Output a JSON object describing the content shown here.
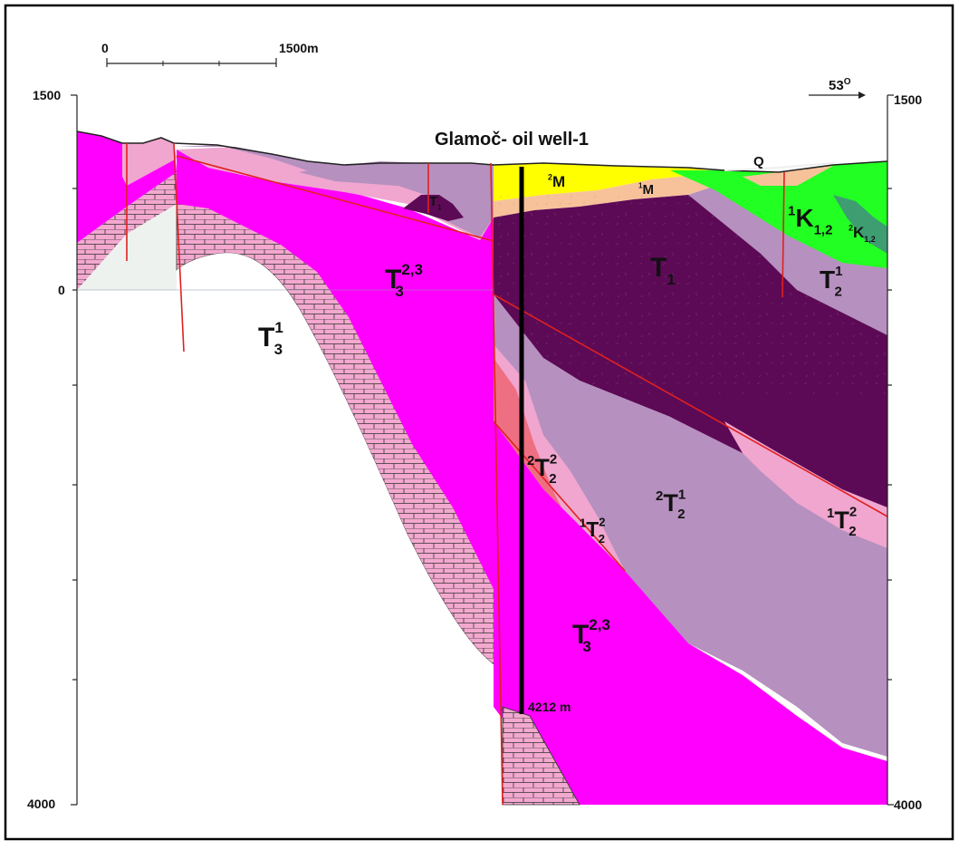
{
  "title": "Glamoč- oil well-1",
  "scale_bar": {
    "start_label": "0",
    "end_label": "1500m"
  },
  "orientation": {
    "label": "53",
    "degree_sign": "O"
  },
  "depth_axis": {
    "left_top": "1500",
    "left_zero": "0",
    "left_bottom": "4000",
    "right_top": "1500",
    "right_bottom": "4000"
  },
  "well": {
    "depth_label": "4212 m"
  },
  "units": {
    "t3_23_upper": {
      "pre": "",
      "base": "T",
      "sub": "3",
      "sup": "2,3"
    },
    "t3_1": {
      "pre": "",
      "base": "T",
      "sub": "3",
      "sup": "1"
    },
    "t1_small": {
      "pre": "",
      "base": "T",
      "sub": "1",
      "sup": ""
    },
    "m2": {
      "pre": "2",
      "base": "M",
      "sub": "",
      "sup": ""
    },
    "m1": {
      "pre": "1",
      "base": "M",
      "sub": "",
      "sup": ""
    },
    "q": {
      "pre": "",
      "base": "Q",
      "sub": "",
      "sup": ""
    },
    "k12_1": {
      "pre": "1",
      "base": "K",
      "sub": "1,2",
      "sup": ""
    },
    "k12_2": {
      "pre": "2",
      "base": "K",
      "sub": "1,2",
      "sup": ""
    },
    "t1_large": {
      "pre": "",
      "base": "T",
      "sub": "1",
      "sup": ""
    },
    "t2_1_right": {
      "pre": "",
      "base": "T",
      "sub": "2",
      "sup": "1"
    },
    "t2_2_2": {
      "pre": "2",
      "base": "T",
      "sub": "2",
      "sup": "2"
    },
    "t2_2_1": {
      "pre": "2",
      "base": "T",
      "sub": "2",
      "sup": "1"
    },
    "t2_1_2_center": {
      "pre": "1",
      "base": "T",
      "sub": "2",
      "sup": "2"
    },
    "t2_1_2_right": {
      "pre": "1",
      "base": "T",
      "sub": "2",
      "sup": "2"
    },
    "t3_23_lower": {
      "pre": "",
      "base": "T",
      "sub": "3",
      "sup": "2,3"
    }
  },
  "colors": {
    "magenta": "#ff00ff",
    "light_pink": "#f0a6cf",
    "dark_purple": "#5c0a55",
    "lavender": "#b690bf",
    "yellow": "#ffff00",
    "peach": "#f7c29a",
    "green": "#22ff22",
    "teal_green": "#3e9e72",
    "salmon": "#ef6f82",
    "pale_gray": "#eef2ef",
    "fault_red": "#e02020"
  }
}
